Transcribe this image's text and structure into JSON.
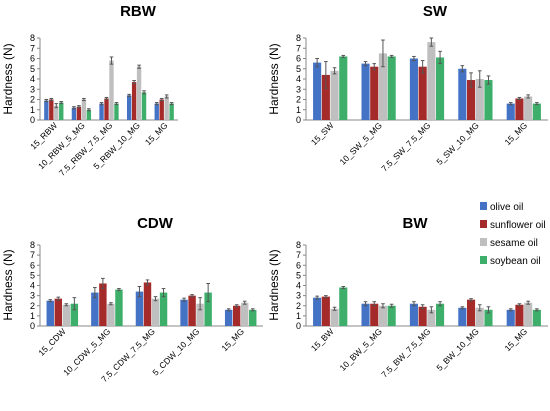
{
  "legend": {
    "entries": [
      {
        "name": "olive oil",
        "color": "#4472C4"
      },
      {
        "name": "sunflower oil",
        "color": "#A52A2A"
      },
      {
        "name": "sesame oil",
        "color": "#BFBFBF"
      },
      {
        "name": "soybean oil",
        "color": "#3DAF6B"
      }
    ]
  },
  "chart_data": [
    {
      "type": "bar",
      "title": "RBW",
      "ylabel": "Hardness (N)",
      "ylim": [
        0,
        8
      ],
      "yticks": [
        0,
        1,
        2,
        3,
        4,
        5,
        6,
        7,
        8
      ],
      "categories": [
        "15_RBW",
        "10_RBW_5_MG",
        "7.5_RBW_7.5_MG",
        "5_RBW_10_MG",
        "15_MG"
      ],
      "series": [
        {
          "name": "olive oil",
          "values": [
            1.9,
            1.2,
            1.6,
            2.4,
            1.6
          ],
          "errors": [
            0.1,
            0.1,
            0.1,
            0.1,
            0.1
          ]
        },
        {
          "name": "sunflower oil",
          "values": [
            2.0,
            1.3,
            2.1,
            3.7,
            2.0
          ],
          "errors": [
            0.1,
            0.1,
            0.1,
            0.15,
            0.1
          ]
        },
        {
          "name": "sesame oil",
          "values": [
            1.4,
            2.0,
            5.8,
            5.2,
            2.3
          ],
          "errors": [
            0.2,
            0.1,
            0.35,
            0.15,
            0.15
          ]
        },
        {
          "name": "soybean oil",
          "values": [
            1.7,
            1.0,
            1.6,
            2.7,
            1.6
          ],
          "errors": [
            0.1,
            0.1,
            0.1,
            0.15,
            0.1
          ]
        }
      ]
    },
    {
      "type": "bar",
      "title": "SW",
      "ylabel": "Hardness (N)",
      "ylim": [
        0,
        8
      ],
      "yticks": [
        0,
        1,
        2,
        3,
        4,
        5,
        6,
        7,
        8
      ],
      "categories": [
        "15_SW",
        "10_SW_5_MG",
        "7.5_SW_7.5_MG",
        "5_SW_10_MG",
        "15_MG"
      ],
      "series": [
        {
          "name": "olive oil",
          "values": [
            5.6,
            5.5,
            6.0,
            5.0,
            1.6
          ],
          "errors": [
            0.4,
            0.2,
            0.2,
            0.3,
            0.1
          ]
        },
        {
          "name": "sunflower oil",
          "values": [
            4.4,
            5.2,
            5.2,
            3.9,
            2.1
          ],
          "errors": [
            1.3,
            0.3,
            0.6,
            0.7,
            0.1
          ]
        },
        {
          "name": "sesame oil",
          "values": [
            4.8,
            6.5,
            7.6,
            4.0,
            2.3
          ],
          "errors": [
            0.3,
            1.3,
            0.4,
            0.8,
            0.15
          ]
        },
        {
          "name": "soybean oil",
          "values": [
            6.2,
            6.2,
            6.1,
            3.9,
            1.6
          ],
          "errors": [
            0.1,
            0.1,
            0.6,
            0.4,
            0.1
          ]
        }
      ]
    },
    {
      "type": "bar",
      "title": "CDW",
      "ylabel": "Hardness (N)",
      "ylim": [
        0,
        8
      ],
      "yticks": [
        0,
        1,
        2,
        3,
        4,
        5,
        6,
        7,
        8
      ],
      "categories": [
        "15_CDW",
        "10_CDW_5_MG",
        "7.5_CDW_7.5_MG",
        "5_CDW_10_MG",
        "15_MG"
      ],
      "series": [
        {
          "name": "olive oil",
          "values": [
            2.5,
            3.3,
            3.4,
            2.6,
            1.6
          ],
          "errors": [
            0.1,
            0.5,
            0.5,
            0.15,
            0.1
          ]
        },
        {
          "name": "sunflower oil",
          "values": [
            2.7,
            4.2,
            4.3,
            3.0,
            2.0
          ],
          "errors": [
            0.15,
            0.5,
            0.25,
            0.1,
            0.1
          ]
        },
        {
          "name": "sesame oil",
          "values": [
            2.1,
            2.2,
            2.7,
            2.2,
            2.3
          ],
          "errors": [
            0.1,
            0.1,
            0.2,
            0.6,
            0.15
          ]
        },
        {
          "name": "soybean oil",
          "values": [
            2.2,
            3.6,
            3.3,
            3.3,
            1.6
          ],
          "errors": [
            0.6,
            0.1,
            0.4,
            0.9,
            0.1
          ]
        }
      ]
    },
    {
      "type": "bar",
      "title": "BW",
      "ylabel": "Hardness (N)",
      "ylim": [
        0,
        8
      ],
      "yticks": [
        0,
        1,
        2,
        3,
        4,
        5,
        6,
        7,
        8
      ],
      "categories": [
        "15_BW",
        "10_BW_5_MG",
        "7.5_BW_7.5_MG",
        "5_BW_10_MG",
        "15_MG"
      ],
      "series": [
        {
          "name": "olive oil",
          "values": [
            2.8,
            2.2,
            2.2,
            1.8,
            1.6
          ],
          "errors": [
            0.15,
            0.2,
            0.2,
            0.1,
            0.1
          ]
        },
        {
          "name": "sunflower oil",
          "values": [
            2.9,
            2.2,
            1.9,
            2.6,
            2.1
          ],
          "errors": [
            0.1,
            0.2,
            0.2,
            0.1,
            0.1
          ]
        },
        {
          "name": "sesame oil",
          "values": [
            1.7,
            2.0,
            1.6,
            1.8,
            2.3
          ],
          "errors": [
            0.15,
            0.2,
            0.3,
            0.3,
            0.15
          ]
        },
        {
          "name": "soybean oil",
          "values": [
            3.8,
            2.0,
            2.2,
            1.6,
            1.6
          ],
          "errors": [
            0.1,
            0.15,
            0.2,
            0.3,
            0.1
          ]
        }
      ]
    }
  ]
}
